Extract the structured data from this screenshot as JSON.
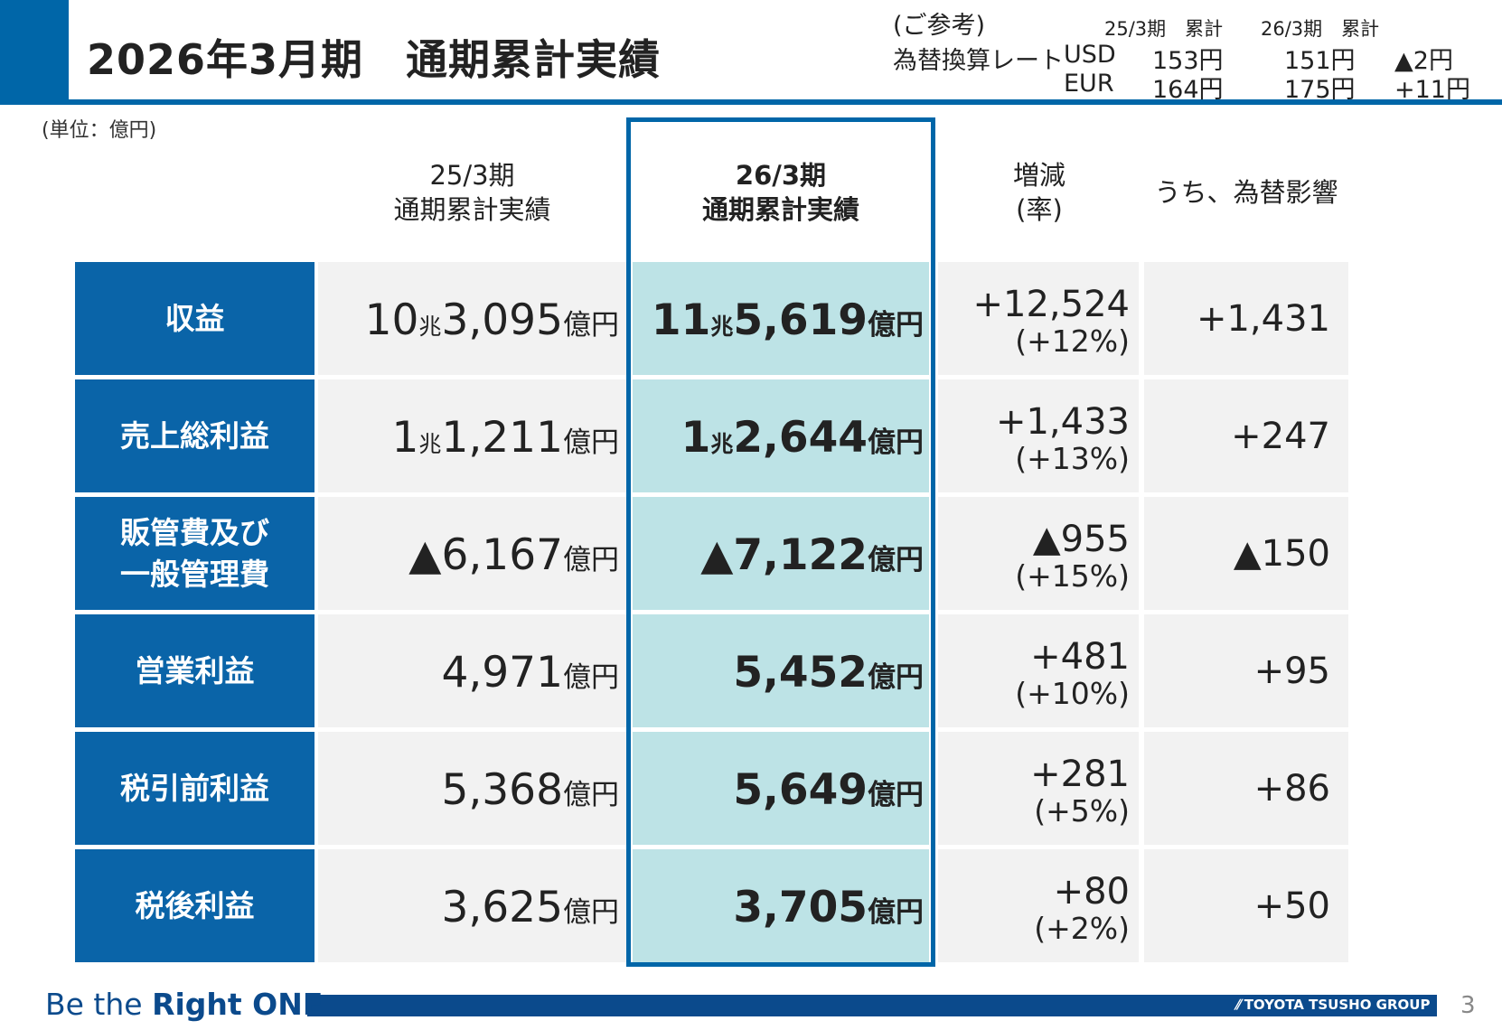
{
  "header": {
    "title": "2026年3月期　通期累計実績",
    "fx": {
      "note": "(ご参考)",
      "label": "為替換算レート",
      "col_prev": "25/3期　累計",
      "col_curr": "26/3期　累計",
      "usd": {
        "currency": "USD",
        "prev": "153円",
        "curr": "151円",
        "diff": "▲2円"
      },
      "eur": {
        "currency": "EUR",
        "prev": "164円",
        "curr": "175円",
        "diff": "+11円"
      }
    }
  },
  "unit_note": "(単位：億円)",
  "columns": {
    "prev_line1": "25/3期",
    "prev_line2": "通期累計実績",
    "curr_line1": "26/3期",
    "curr_line2": "通期累計実績",
    "change_line1": "増減",
    "change_line2": "(率)",
    "fx_impact": "うち、為替影響"
  },
  "rows": [
    {
      "label": "収益",
      "prev": {
        "cho": "10",
        "cho_unit": "兆",
        "num": "3,095",
        "unit": "億円"
      },
      "curr": {
        "cho": "11",
        "cho_unit": "兆",
        "num": "5,619",
        "unit": "億円"
      },
      "change": "+12,524",
      "rate": "(+12%)",
      "fx": "+1,431"
    },
    {
      "label": "売上総利益",
      "prev": {
        "cho": "1",
        "cho_unit": "兆",
        "num": "1,211",
        "unit": "億円"
      },
      "curr": {
        "cho": "1",
        "cho_unit": "兆",
        "num": "2,644",
        "unit": "億円"
      },
      "change": "+1,433",
      "rate": "(+13%)",
      "fx": "+247"
    },
    {
      "label": "販管費及び一般管理費",
      "label_line1": "販管費及び",
      "label_line2": "一般管理費",
      "prev": {
        "num": "▲6,167",
        "unit": "億円"
      },
      "curr": {
        "num": "▲7,122",
        "unit": "億円"
      },
      "change": "▲955",
      "rate": "(+15%)",
      "fx": "▲150"
    },
    {
      "label": "営業利益",
      "prev": {
        "num": "4,971",
        "unit": "億円"
      },
      "curr": {
        "num": "5,452",
        "unit": "億円"
      },
      "change": "+481",
      "rate": "(+10%)",
      "fx": "+95"
    },
    {
      "label": "税引前利益",
      "prev": {
        "num": "5,368",
        "unit": "億円"
      },
      "curr": {
        "num": "5,649",
        "unit": "億円"
      },
      "change": "+281",
      "rate": "(+5%)",
      "fx": "+86"
    },
    {
      "label": "税後利益",
      "prev": {
        "num": "3,625",
        "unit": "億円"
      },
      "curr": {
        "num": "3,705",
        "unit": "億円"
      },
      "change": "+80",
      "rate": "(+2%)",
      "fx": "+50"
    }
  ],
  "footer": {
    "brand_prefix": "Be the ",
    "brand_bold": "Right ONE",
    "logo": "TOYOTA TSUSHO GROUP",
    "page_number": "3"
  }
}
